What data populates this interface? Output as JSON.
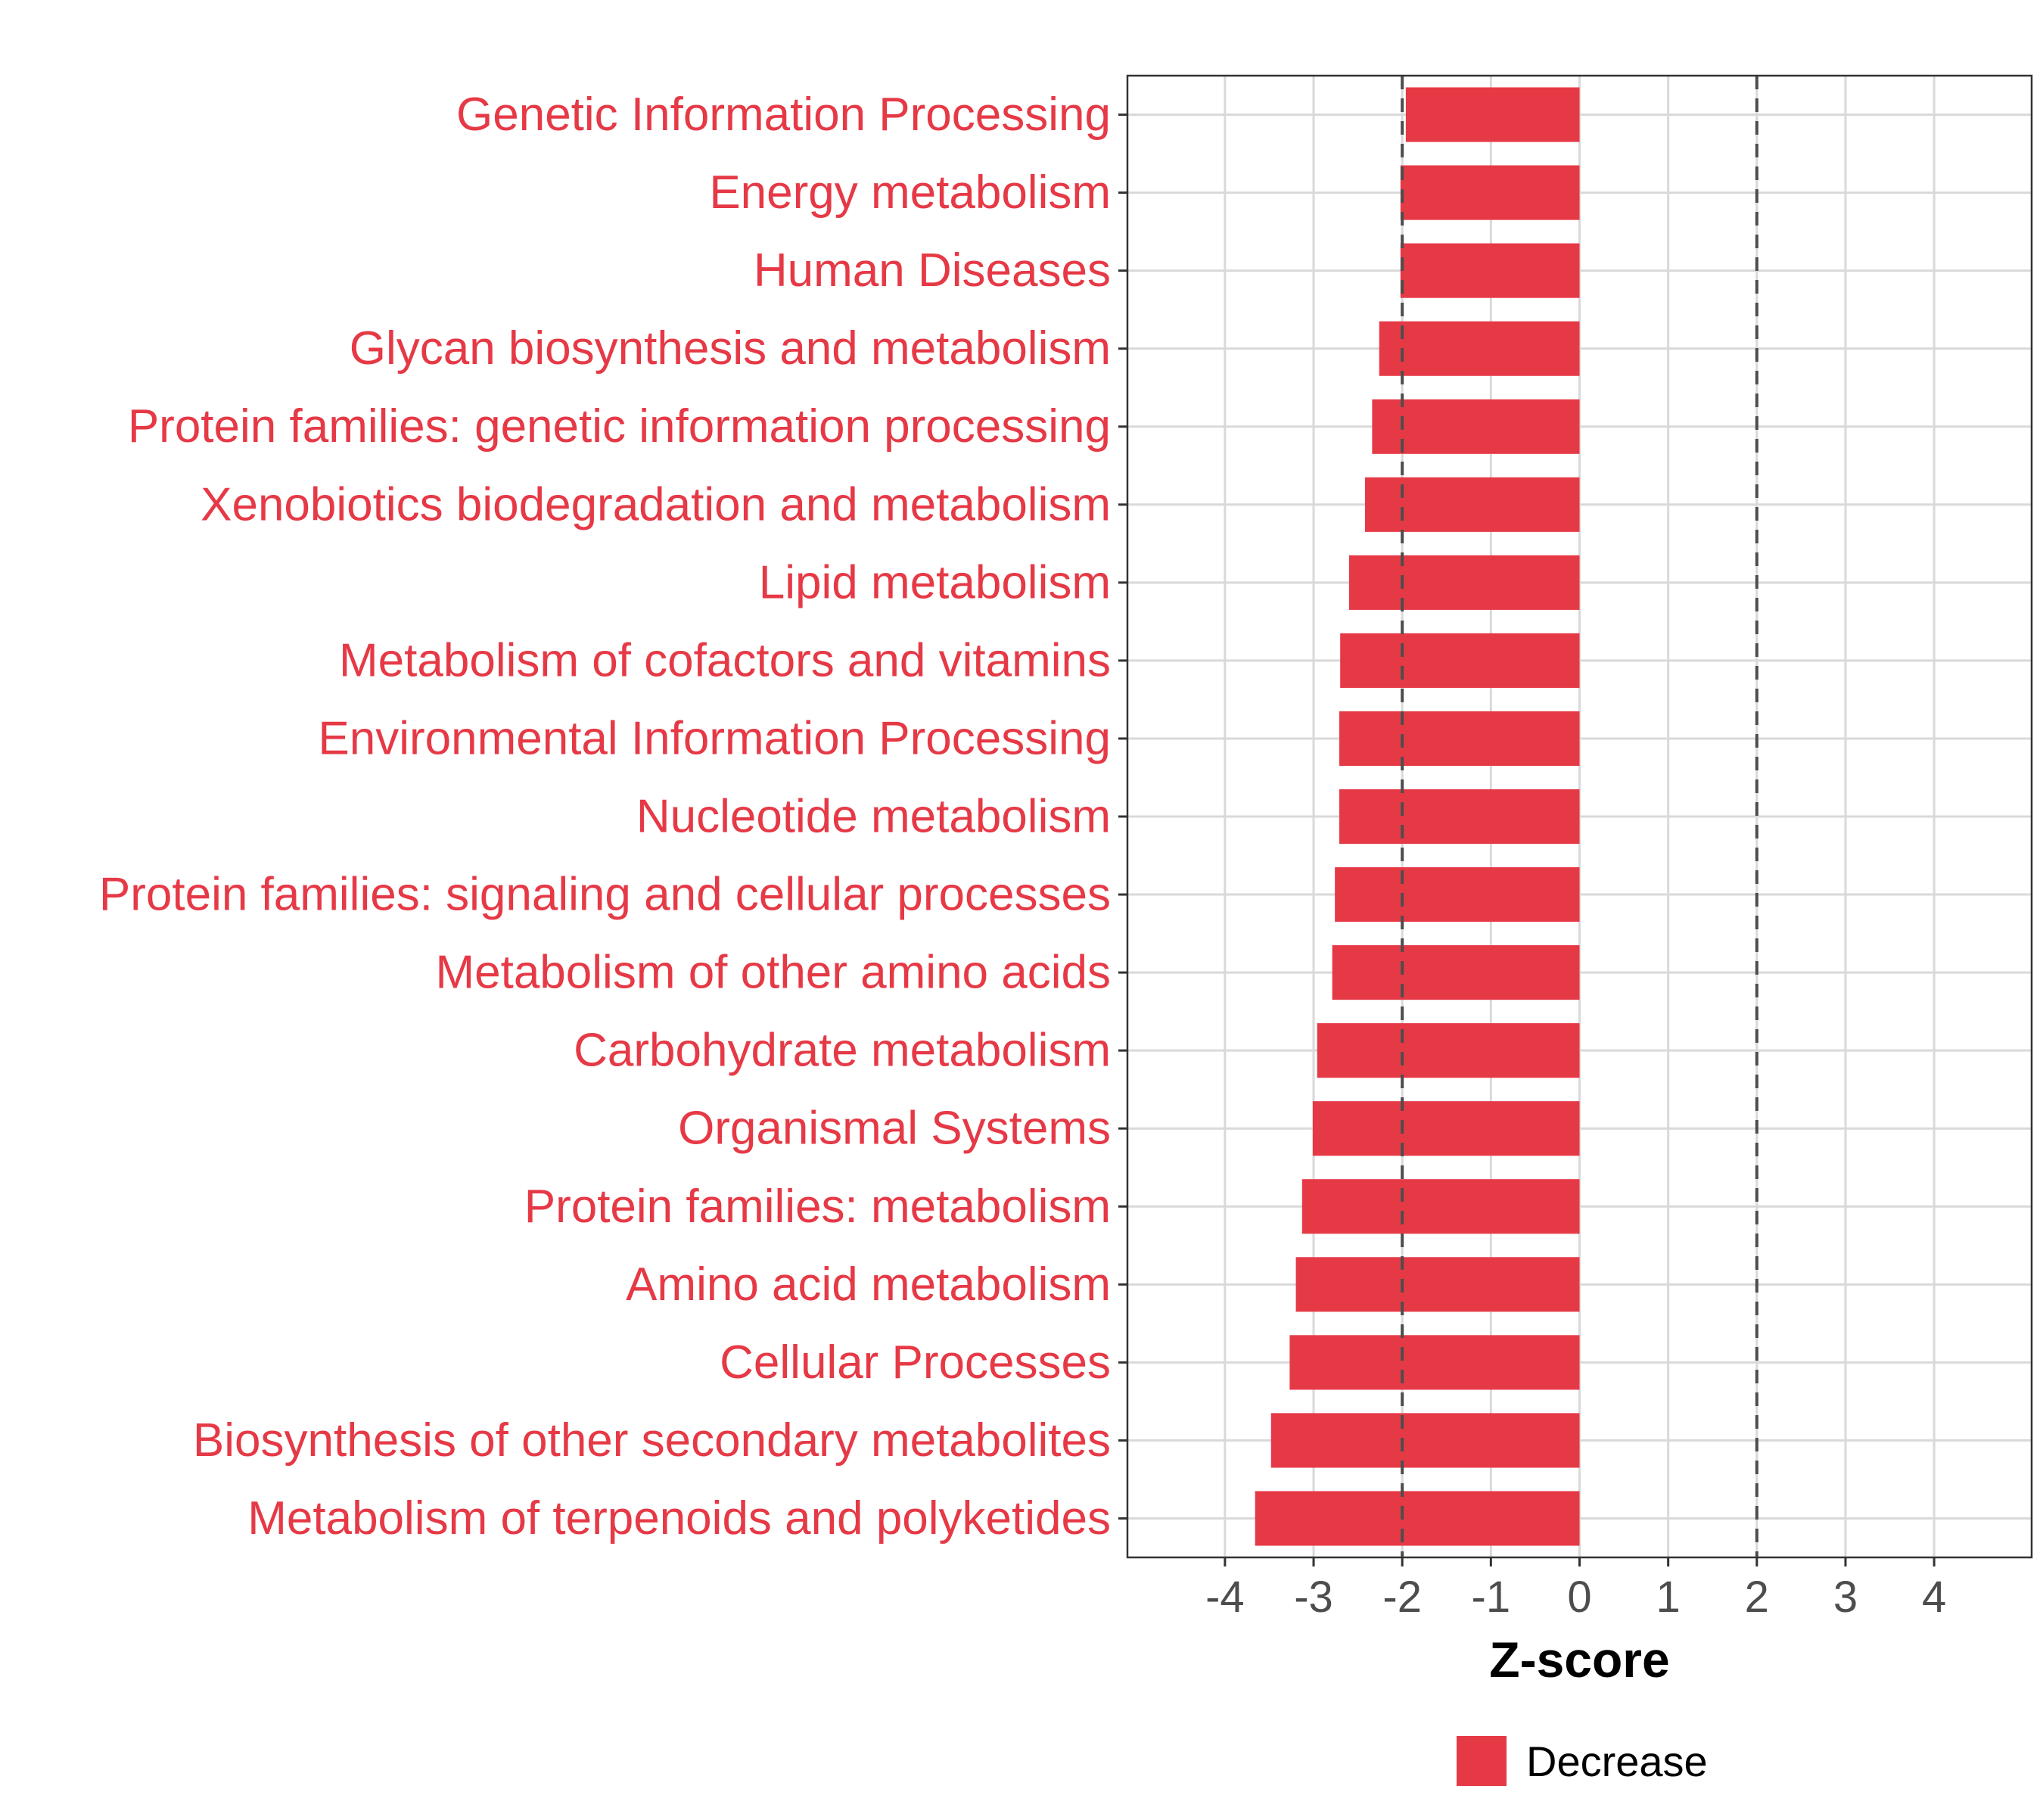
{
  "chart_data": {
    "type": "bar",
    "orientation": "horizontal",
    "categories": [
      "Genetic Information Processing",
      "Energy metabolism",
      "Human Diseases",
      "Glycan biosynthesis and metabolism",
      "Protein families: genetic information processing",
      "Xenobiotics biodegradation and metabolism",
      "Lipid metabolism",
      "Metabolism of cofactors and vitamins",
      "Environmental Information Processing",
      "Nucleotide metabolism",
      "Protein families: signaling and cellular processes",
      "Metabolism of other amino acids",
      "Carbohydrate metabolism",
      "Organismal Systems",
      "Protein families: metabolism",
      "Amino acid metabolism",
      "Cellular Processes",
      "Biosynthesis of other secondary metabolites",
      "Metabolism of terpenoids and polyketides"
    ],
    "values": [
      -1.96,
      -2.02,
      -2.02,
      -2.26,
      -2.34,
      -2.42,
      -2.6,
      -2.7,
      -2.71,
      -2.71,
      -2.76,
      -2.79,
      -2.96,
      -3.01,
      -3.13,
      -3.2,
      -3.27,
      -3.48,
      -3.66
    ],
    "xlabel": "Z-score",
    "ylabel": "",
    "xlim": [
      -5.1,
      5.1
    ],
    "xticks": [
      -4,
      -3,
      -2,
      -1,
      0,
      1,
      2,
      3,
      4
    ],
    "xtick_labels": [
      "-4",
      "-3",
      "-2",
      "-1",
      "0",
      "1",
      "2",
      "3",
      "4"
    ],
    "reference_lines": [
      -2,
      2
    ],
    "grid": true,
    "legend": {
      "position": "bottom",
      "entries": [
        {
          "label": "Decrease",
          "color": "#e63946"
        }
      ]
    },
    "colors": {
      "bar": "#e63946",
      "category_label": "#e63946",
      "grid": "#d9d9d9",
      "tick_label": "#4d4d4d",
      "reference_line": "#4d4d4d"
    }
  }
}
